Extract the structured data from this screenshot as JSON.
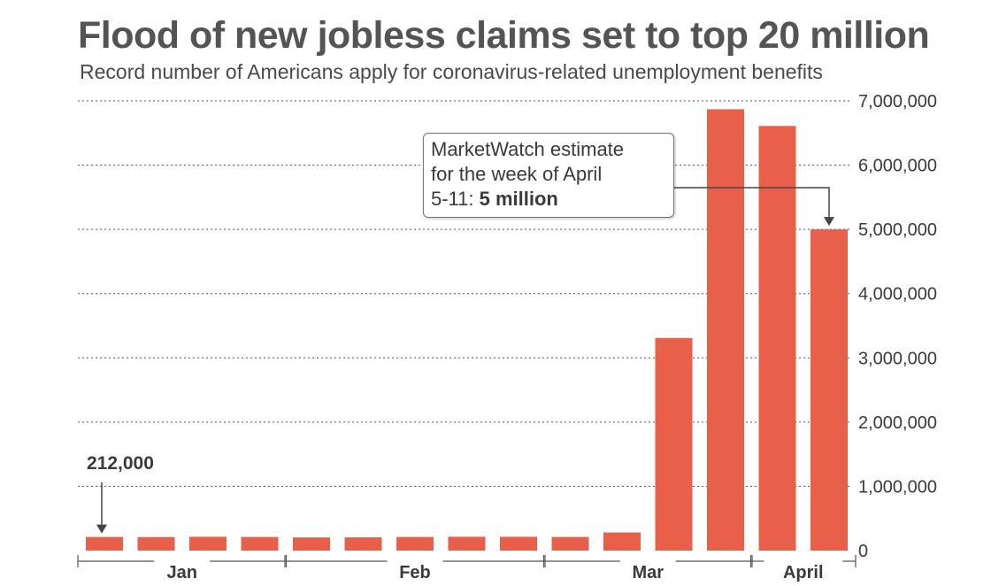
{
  "header": {
    "title": "Flood of new jobless claims set to top 20 million",
    "subtitle": "Record number of Americans apply for coronavirus-related unemployment benefits"
  },
  "annotation": {
    "line1": "MarketWatch estimate",
    "line2": "for the week of April",
    "line3_prefix": "5-11: ",
    "line3_bold": "5 million"
  },
  "colors": {
    "bar": "#e8604a",
    "grid": "#555555",
    "axis": "#555555"
  },
  "chart_data": {
    "type": "bar",
    "title": "Flood of new jobless claims set to top 20 million",
    "subtitle": "Record number of Americans apply for coronavirus-related unemployment benefits",
    "xlabel": "",
    "ylabel": "",
    "ylim": [
      0,
      7000000
    ],
    "y_ticks": [
      0,
      1000000,
      2000000,
      3000000,
      4000000,
      5000000,
      6000000,
      7000000
    ],
    "y_tick_labels": [
      "0",
      "1,000,000",
      "2,000,000",
      "3,000,000",
      "4,000,000",
      "5,000,000",
      "6,000,000",
      "7,000,000"
    ],
    "y_axis_side": "right",
    "grid": "horizontal dotted",
    "month_groups": [
      {
        "label": "Jan",
        "start": 0,
        "end": 3
      },
      {
        "label": "Feb",
        "start": 4,
        "end": 8
      },
      {
        "label": "Mar",
        "start": 9,
        "end": 12
      },
      {
        "label": "April",
        "start": 13,
        "end": 14
      }
    ],
    "values": [
      212000,
      210000,
      215000,
      212000,
      205000,
      206000,
      212000,
      215000,
      215000,
      212000,
      282000,
      3310000,
      6870000,
      6610000,
      5000000
    ],
    "callouts": [
      {
        "bar_index": 0,
        "label": "212,000"
      }
    ]
  }
}
